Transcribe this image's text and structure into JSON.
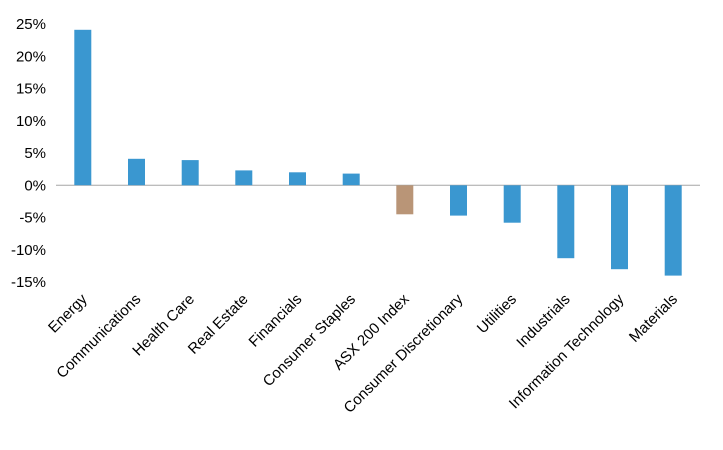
{
  "chart_data": {
    "type": "bar",
    "title": "",
    "xlabel": "",
    "ylabel": "",
    "categories": [
      "Energy",
      "Communications",
      "Health Care",
      "Real Estate",
      "Financials",
      "Consumer Staples",
      "ASX 200 Index",
      "Consumer Discretionary",
      "Utilities",
      "Industrials",
      "Information Technology",
      "Materials"
    ],
    "values": [
      24.1,
      4.1,
      3.9,
      2.3,
      2.0,
      1.8,
      -4.5,
      -4.7,
      -5.8,
      -11.3,
      -13.0,
      -14.0
    ],
    "ylim": [
      -15,
      25
    ],
    "yticks": [
      25,
      20,
      15,
      10,
      5,
      0,
      -5,
      -10,
      -15
    ],
    "ytick_labels": [
      "25%",
      "20%",
      "15%",
      "10%",
      "5%",
      "0%",
      "-5%",
      "-10%",
      "-15%"
    ],
    "grid": false,
    "legend": "none",
    "colors": {
      "default": "#3a97d0",
      "highlight": "#b99577",
      "highlight_category": "ASX 200 Index",
      "axis": "#a6a6a6"
    }
  }
}
